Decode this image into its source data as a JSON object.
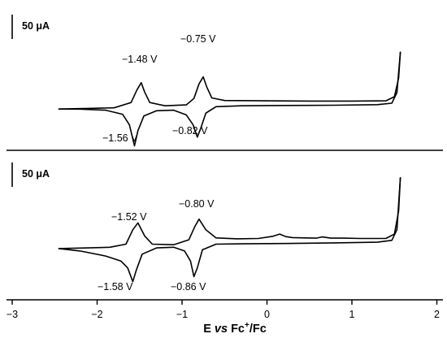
{
  "chart_data": [
    {
      "type": "line",
      "panel": "top",
      "scale_bar": "50 μA",
      "xlim": [
        -3,
        2
      ],
      "peak_labels": [
        "−1.48 V",
        "−0.75 V",
        "−1.56 V",
        "−0.82 V"
      ],
      "series": [
        {
          "values": [
            [
              -2.45,
              -0.3
            ],
            [
              -2.2,
              -0.32
            ],
            [
              -1.9,
              -0.5
            ],
            [
              -1.7,
              -1.2
            ],
            [
              -1.62,
              -3.0
            ],
            [
              -1.56,
              -6.6
            ],
            [
              -1.52,
              -4.0
            ],
            [
              -1.45,
              -1.5
            ],
            [
              -1.3,
              -0.6
            ],
            [
              -1.1,
              -0.5
            ],
            [
              -0.95,
              -1.3
            ],
            [
              -0.87,
              -3.0
            ],
            [
              -0.82,
              -5.1
            ],
            [
              -0.78,
              -3.6
            ],
            [
              -0.72,
              -1.0
            ],
            [
              -0.6,
              0.1
            ],
            [
              -0.3,
              0.25
            ],
            [
              0.2,
              0.3
            ],
            [
              0.8,
              0.35
            ],
            [
              1.3,
              0.45
            ],
            [
              1.47,
              0.7
            ],
            [
              1.53,
              2.5
            ],
            [
              1.57,
              9.4
            ]
          ]
        },
        {
          "values": [
            [
              1.57,
              9.4
            ],
            [
              1.55,
              5.0
            ],
            [
              1.5,
              1.8
            ],
            [
              1.4,
              1.1
            ],
            [
              1.0,
              1.05
            ],
            [
              0.5,
              1.05
            ],
            [
              0.0,
              1.1
            ],
            [
              -0.5,
              1.15
            ],
            [
              -0.65,
              1.6
            ],
            [
              -0.71,
              3.5
            ],
            [
              -0.75,
              5.2
            ],
            [
              -0.8,
              4.0
            ],
            [
              -0.86,
              1.5
            ],
            [
              -0.95,
              0.4
            ],
            [
              -1.2,
              0.25
            ],
            [
              -1.38,
              0.8
            ],
            [
              -1.44,
              2.6
            ],
            [
              -1.48,
              4.2
            ],
            [
              -1.53,
              3.0
            ],
            [
              -1.6,
              0.8
            ],
            [
              -1.8,
              -0.1
            ],
            [
              -2.1,
              -0.2
            ],
            [
              -2.45,
              -0.3
            ]
          ]
        }
      ]
    },
    {
      "type": "line",
      "panel": "bottom",
      "scale_bar": "50 μA",
      "xlim": [
        -3,
        2
      ],
      "peak_labels": [
        "−1.52 V",
        "−0.80 V",
        "−1.58 V",
        "−0.86 V"
      ],
      "series": [
        {
          "values": [
            [
              -2.45,
              -0.5
            ],
            [
              -2.2,
              -0.9
            ],
            [
              -1.9,
              -1.7
            ],
            [
              -1.72,
              -2.5
            ],
            [
              -1.64,
              -3.6
            ],
            [
              -1.58,
              -5.8
            ],
            [
              -1.54,
              -4.0
            ],
            [
              -1.47,
              -1.4
            ],
            [
              -1.3,
              -0.4
            ],
            [
              -1.1,
              -0.3
            ],
            [
              -0.97,
              -0.9
            ],
            [
              -0.9,
              -2.5
            ],
            [
              -0.86,
              -5.0
            ],
            [
              -0.82,
              -3.6
            ],
            [
              -0.76,
              -0.7
            ],
            [
              -0.6,
              0.2
            ],
            [
              -0.3,
              0.25
            ],
            [
              0.2,
              0.3
            ],
            [
              0.8,
              0.4
            ],
            [
              1.3,
              0.5
            ],
            [
              1.47,
              0.8
            ],
            [
              1.53,
              2.5
            ],
            [
              1.57,
              10.8
            ]
          ]
        },
        {
          "values": [
            [
              1.57,
              10.8
            ],
            [
              1.55,
              5.5
            ],
            [
              1.5,
              1.8
            ],
            [
              1.4,
              1.1
            ],
            [
              1.1,
              1.1
            ],
            [
              0.9,
              1.15
            ],
            [
              0.75,
              1.15
            ],
            [
              0.65,
              1.35
            ],
            [
              0.58,
              1.15
            ],
            [
              0.45,
              1.2
            ],
            [
              0.3,
              1.25
            ],
            [
              0.22,
              1.4
            ],
            [
              0.15,
              1.8
            ],
            [
              0.07,
              1.45
            ],
            [
              -0.1,
              1.1
            ],
            [
              -0.35,
              1.05
            ],
            [
              -0.6,
              1.2
            ],
            [
              -0.72,
              2.5
            ],
            [
              -0.8,
              4.2
            ],
            [
              -0.85,
              3.0
            ],
            [
              -0.92,
              0.9
            ],
            [
              -1.1,
              0.1
            ],
            [
              -1.35,
              0.2
            ],
            [
              -1.44,
              1.5
            ],
            [
              -1.52,
              3.6
            ],
            [
              -1.58,
              2.5
            ],
            [
              -1.66,
              0.2
            ],
            [
              -1.85,
              -0.3
            ],
            [
              -2.1,
              -0.4
            ],
            [
              -2.45,
              -0.5
            ]
          ]
        }
      ]
    }
  ],
  "x_axis": {
    "ticks": [
      "−3",
      "−2",
      "−1",
      "0",
      "1",
      "2"
    ],
    "title_e": "E ",
    "title_vs": "vs",
    "title_fc": " Fc",
    "title_sup": "+",
    "title_tail": "/Fc"
  }
}
